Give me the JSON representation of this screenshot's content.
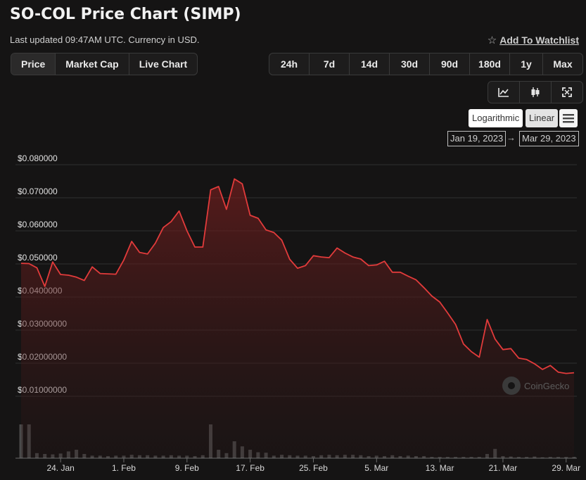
{
  "header": {
    "title": "SO-COL Price Chart (SIMP)",
    "updated": "Last updated 09:47AM UTC. Currency in USD.",
    "watchlist_label": "Add To Watchlist"
  },
  "tabs": [
    "Price",
    "Market Cap",
    "Live Chart"
  ],
  "ranges": [
    "24h",
    "7d",
    "14d",
    "30d",
    "90d",
    "180d",
    "1y",
    "Max"
  ],
  "icons": [
    "line-chart-icon",
    "candlestick-icon",
    "fullscreen-icon"
  ],
  "scale": {
    "log_label": "Logarithmic",
    "linear_label": "Linear"
  },
  "date_range": {
    "from": "Jan 19, 2023",
    "arrow": "→",
    "to": "Mar 29, 2023"
  },
  "watermark": "CoinGecko",
  "colors": {
    "line": "#e23b3b",
    "grid": "#2f2f2f",
    "volume": "#4a4a4a",
    "background": "#151414"
  },
  "chart_data": {
    "type": "area",
    "series_name": "Price",
    "ylim": [
      0,
      0.09
    ],
    "y_ticks": [
      0.01,
      0.02,
      0.03,
      0.04,
      0.05,
      0.06,
      0.07,
      0.08
    ],
    "y_tick_labels": [
      "$0.01000000",
      "$0.02000000",
      "$0.03000000",
      "$0.0400000",
      "$0.050000",
      "$0.060000",
      "$0.070000",
      "$0.080000"
    ],
    "x_tick_labels": [
      "24. Jan",
      "1. Feb",
      "9. Feb",
      "17. Feb",
      "25. Feb",
      "5. Mar",
      "13. Mar",
      "21. Mar",
      "29. Mar"
    ],
    "x_tick_days": [
      5,
      13,
      21,
      29,
      37,
      45,
      53,
      61,
      69
    ],
    "x_range_days": [
      0,
      70
    ],
    "x_start": "Jan 19, 2023",
    "x_step": "1 day",
    "values": [
      0.0502,
      0.0501,
      0.0488,
      0.0432,
      0.0506,
      0.0468,
      0.0466,
      0.046,
      0.045,
      0.0491,
      0.0471,
      0.047,
      0.0469,
      0.0512,
      0.0568,
      0.0535,
      0.053,
      0.0563,
      0.061,
      0.0628,
      0.066,
      0.06,
      0.0551,
      0.0551,
      0.0724,
      0.0734,
      0.0665,
      0.0757,
      0.0742,
      0.0647,
      0.0638,
      0.0603,
      0.0595,
      0.0572,
      0.0514,
      0.0487,
      0.0495,
      0.0525,
      0.0521,
      0.0519,
      0.0548,
      0.0533,
      0.0521,
      0.0515,
      0.0495,
      0.0497,
      0.0508,
      0.0475,
      0.0475,
      0.0463,
      0.0452,
      0.0428,
      0.0403,
      0.0385,
      0.0352,
      0.0317,
      0.0258,
      0.0235,
      0.0218,
      0.0332,
      0.0273,
      0.0241,
      0.0244,
      0.0215,
      0.0211,
      0.0198,
      0.0181,
      0.0193,
      0.0173,
      0.0169,
      0.0171
    ],
    "volume": [
      0.8,
      0.8,
      0.12,
      0.1,
      0.09,
      0.11,
      0.16,
      0.2,
      0.1,
      0.06,
      0.06,
      0.05,
      0.06,
      0.06,
      0.08,
      0.07,
      0.07,
      0.06,
      0.06,
      0.07,
      0.06,
      0.06,
      0.05,
      0.07,
      0.8,
      0.2,
      0.12,
      0.4,
      0.28,
      0.2,
      0.14,
      0.13,
      0.06,
      0.08,
      0.07,
      0.06,
      0.06,
      0.05,
      0.07,
      0.08,
      0.07,
      0.08,
      0.08,
      0.07,
      0.05,
      0.06,
      0.05,
      0.07,
      0.05,
      0.06,
      0.05,
      0.05,
      0.03,
      0.03,
      0.03,
      0.03,
      0.03,
      0.03,
      0.03,
      0.1,
      0.22,
      0.05,
      0.04,
      0.03,
      0.03,
      0.04,
      0.02,
      0.03,
      0.03,
      0.03,
      0.03
    ]
  }
}
